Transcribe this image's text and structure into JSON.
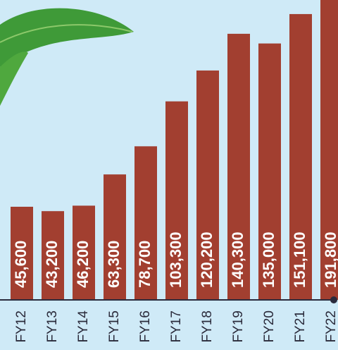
{
  "chart_data": {
    "type": "bar",
    "categories": [
      "FY12",
      "FY13",
      "FY14",
      "FY15",
      "FY16",
      "FY17",
      "FY18",
      "FY19",
      "FY20",
      "FY21",
      "FY22"
    ],
    "values": [
      45600,
      43200,
      46200,
      63300,
      78700,
      103300,
      120200,
      140300,
      135000,
      151100,
      191800
    ],
    "value_labels": [
      "45,600",
      "43,200",
      "46,200",
      "63,300",
      "78,700",
      "103,300",
      "120,200",
      "140,300",
      "135,000",
      "151,100",
      "191,800"
    ],
    "color": "#a23f30",
    "ylim": [
      -5400,
      158800
    ]
  }
}
